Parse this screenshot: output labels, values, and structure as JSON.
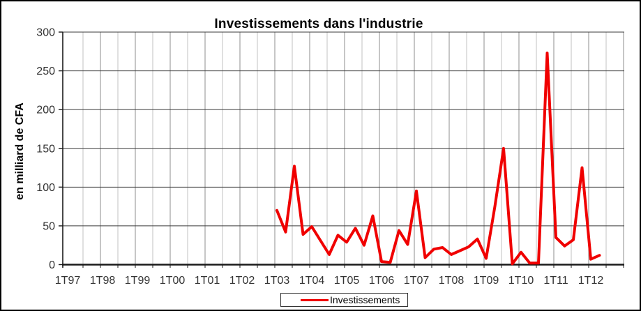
{
  "chart_data": {
    "type": "line",
    "title": "Investissements dans l'industrie",
    "ylabel": "en milliard de CFA",
    "ylim": [
      0,
      300
    ],
    "yticks": [
      0,
      50,
      100,
      150,
      200,
      250,
      300
    ],
    "x_axis_labels": [
      "1T97",
      "1T98",
      "1T99",
      "1T00",
      "1T01",
      "1T02",
      "1T03",
      "1T04",
      "1T05",
      "1T06",
      "1T07",
      "1T08",
      "1T09",
      "1T10",
      "1T11",
      "1T12"
    ],
    "quarters_per_year_label": 4,
    "x_gridline_every_quarters": 2,
    "grid": {
      "horizontal": true,
      "vertical": true
    },
    "legend_position": "bottom",
    "series": [
      {
        "name": "Investissements",
        "color": "#f00000",
        "x": [
          "1T03",
          "2T03",
          "3T03",
          "4T03",
          "1T04",
          "2T04",
          "3T04",
          "4T04",
          "1T05",
          "2T05",
          "3T05",
          "4T05",
          "1T06",
          "2T06",
          "3T06",
          "4T06",
          "1T07",
          "2T07",
          "3T07",
          "4T07",
          "1T08",
          "2T08",
          "3T08",
          "4T08",
          "1T09",
          "2T09",
          "3T09",
          "4T09",
          "1T10",
          "2T10",
          "3T10",
          "4T10",
          "1T11",
          "2T11",
          "3T11",
          "4T11",
          "1T12",
          "2T12"
        ],
        "values": [
          70,
          42,
          127,
          39,
          49,
          31,
          13,
          38,
          29,
          47,
          25,
          63,
          4,
          3,
          44,
          26,
          95,
          9,
          20,
          22,
          13,
          18,
          23,
          33,
          8,
          75,
          150,
          1,
          16,
          2,
          2,
          273,
          35,
          24,
          32,
          125,
          7,
          12
        ]
      }
    ]
  },
  "colors": {
    "line": "#f00000",
    "grid_vertical": "#c2c2c2",
    "grid_vertical_alt": "#8c8c8c",
    "grid_horizontal": "#3a3a3a",
    "axis": "#1a1a1a",
    "text": "#333333",
    "frame_border": "#000000",
    "background": "#ffffff"
  }
}
